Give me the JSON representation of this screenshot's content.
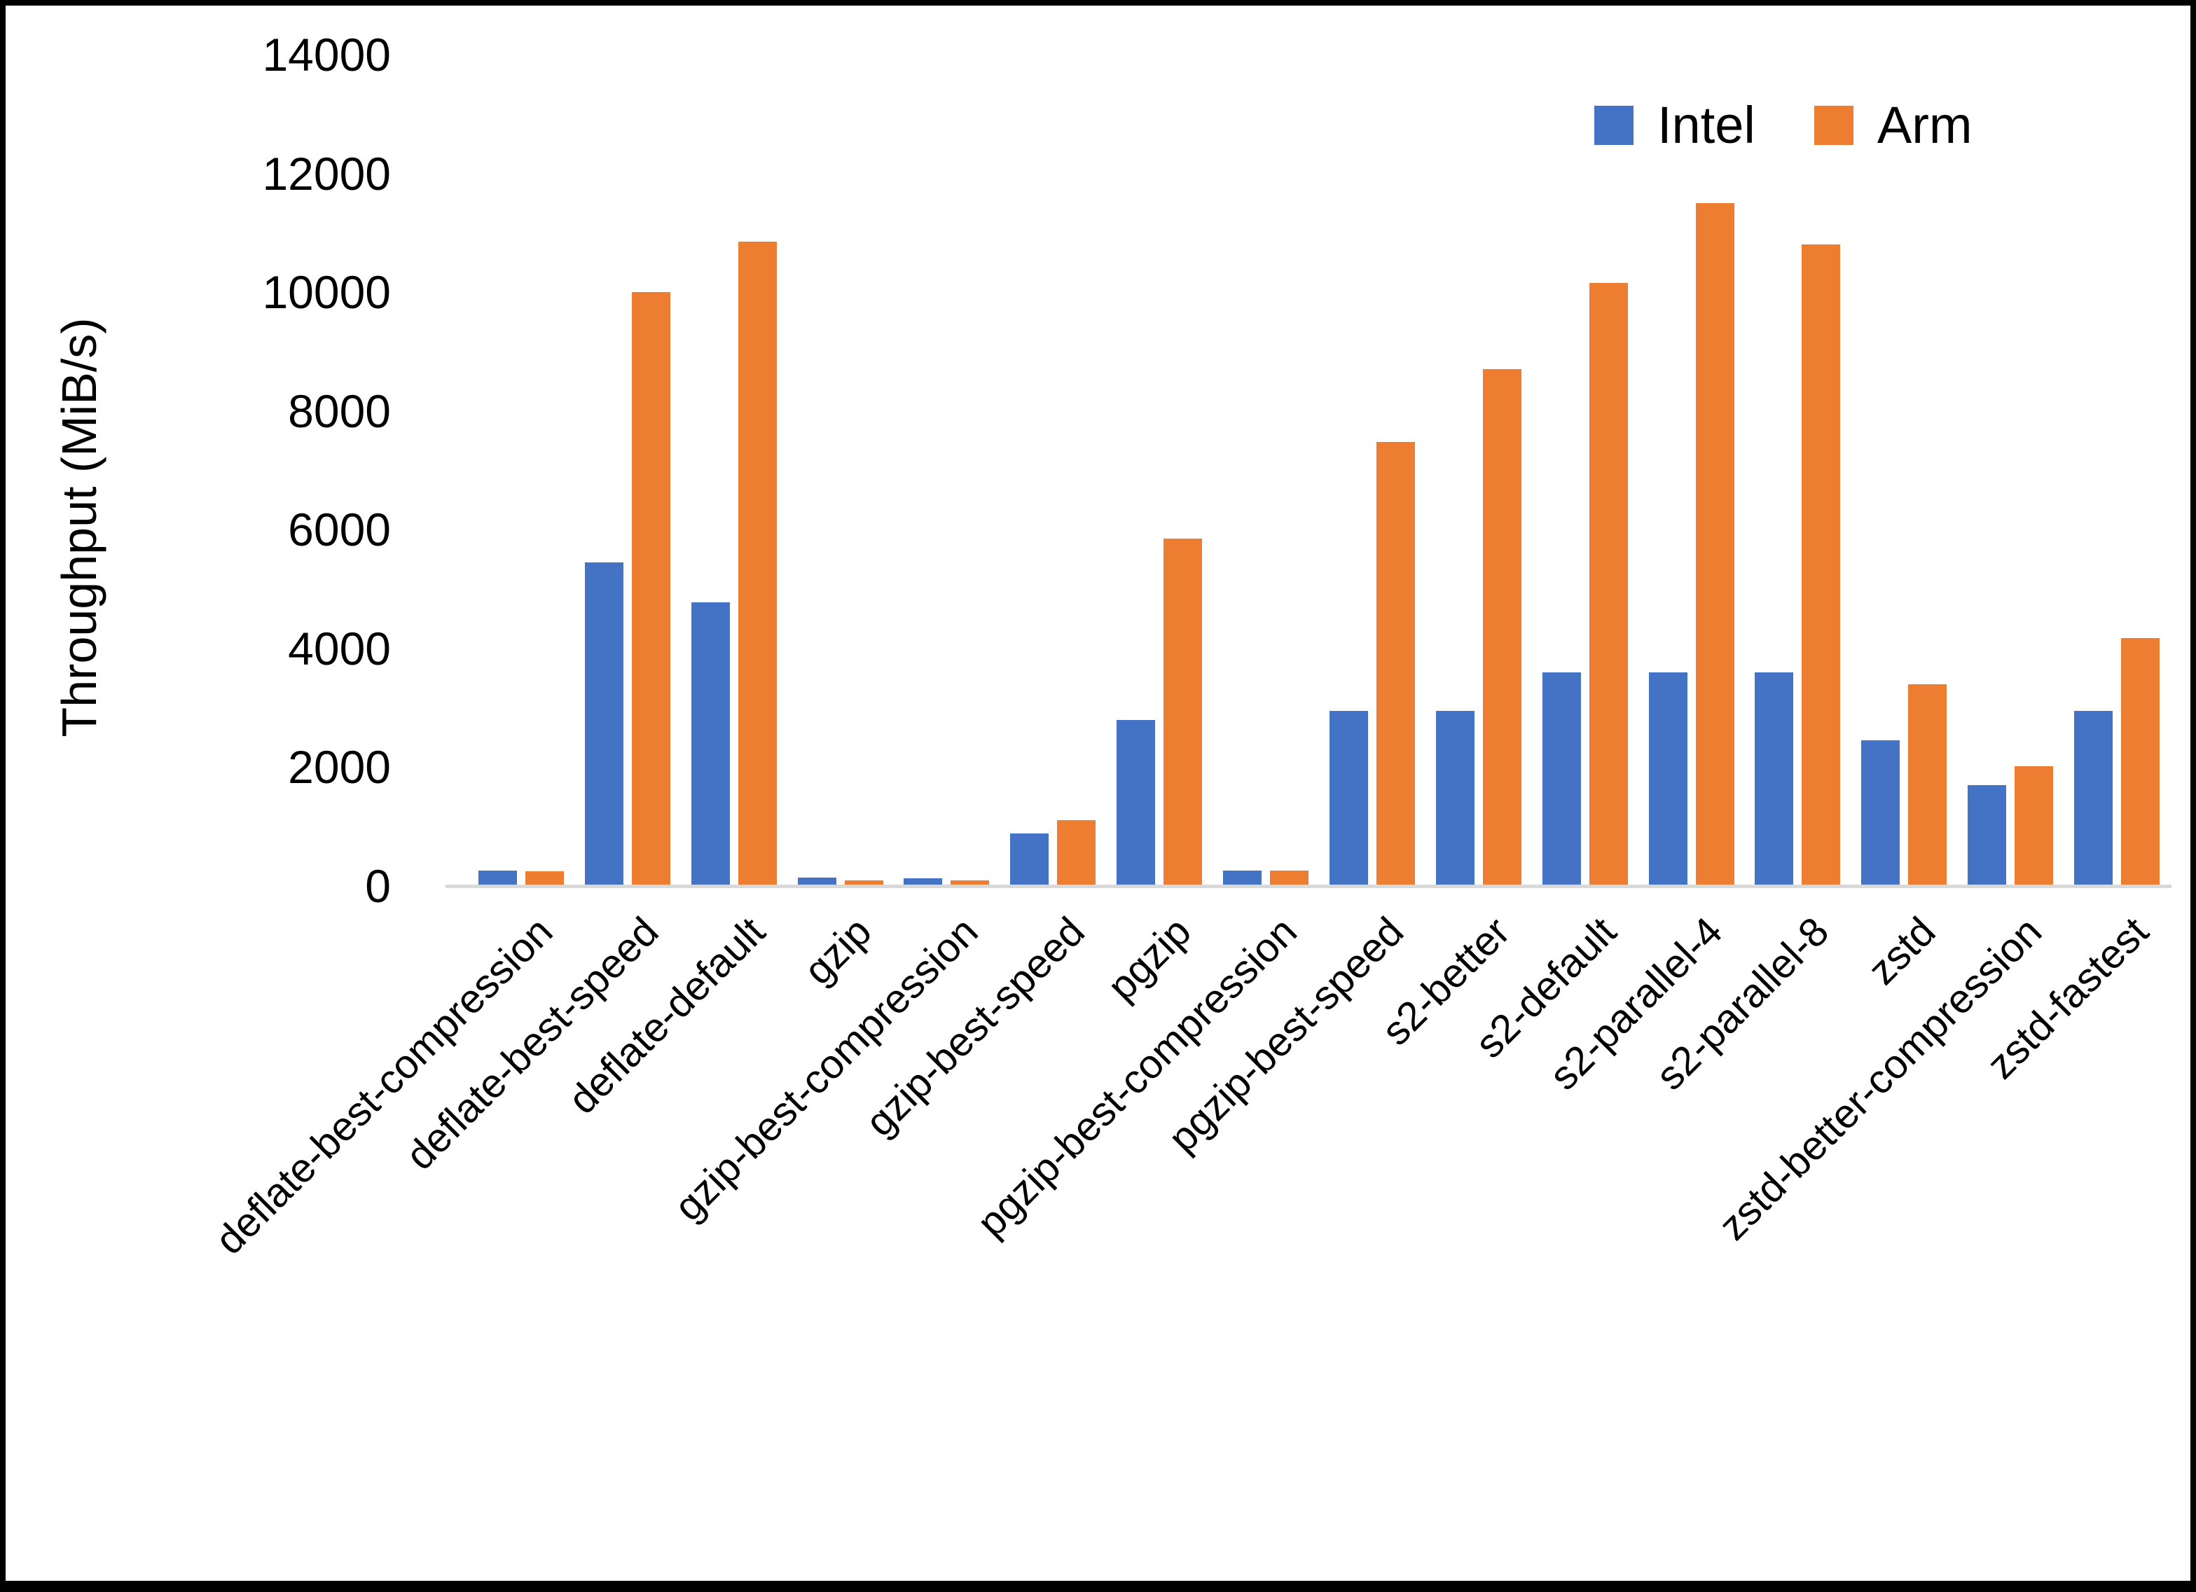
{
  "chart_data": {
    "type": "bar",
    "title": "",
    "xlabel": "",
    "ylabel": "Throughput (MiB/s)",
    "ylim": [
      0,
      14000
    ],
    "ytick_interval": 2000,
    "ytick_labels": [
      "0",
      "2000",
      "4000",
      "6000",
      "8000",
      "10000",
      "12000",
      "14000"
    ],
    "grid": false,
    "legend_position": "top-right",
    "categories": [
      "deflate-best-compression",
      "deflate-best-speed",
      "deflate-default",
      "gzip",
      "gzip-best-compression",
      "gzip-best-speed",
      "pgzip",
      "pgzip-best-compression",
      "pgzip-best-speed",
      "s2-better",
      "s2-default",
      "s2-parallel-4",
      "s2-parallel-8",
      "zstd",
      "zstd-better-compression",
      "zstd-fastest"
    ],
    "series": [
      {
        "name": "Intel",
        "color": "#4472C4",
        "values": [
          255,
          5450,
          4780,
          140,
          135,
          880,
          2800,
          260,
          2950,
          2950,
          3600,
          3600,
          3600,
          2450,
          1700,
          2950
        ]
      },
      {
        "name": "Arm",
        "color": "#ED7D31",
        "values": [
          245,
          10000,
          10850,
          95,
          95,
          1110,
          5850,
          265,
          7480,
          8700,
          10150,
          11500,
          10800,
          3400,
          2020,
          4180
        ]
      }
    ]
  },
  "axis": {
    "baseline_color": "#D9D9D9",
    "text_color": "#000000"
  },
  "frame": {
    "border_color": "#000000"
  }
}
